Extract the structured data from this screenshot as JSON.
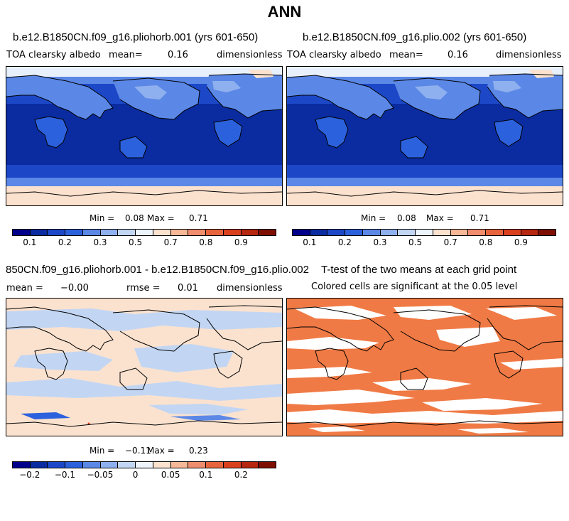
{
  "title": "ANN",
  "panels": {
    "p1": {
      "title": "b.e12.B1850CN.f09_g16.pliohorb.001 (yrs 601-650)",
      "left_label": "TOA clearsky albedo",
      "mean_label": "mean=",
      "mean_value": "0.16",
      "units": "dimensionless",
      "min_label": "Min =",
      "min_value": "0.08",
      "max_label": "Max =",
      "max_value": "0.71"
    },
    "p2": {
      "title": "b.e12.B1850CN.f09_g16.plio.002 (yrs 601-650)",
      "left_label": "TOA clearsky albedo",
      "mean_label": "mean=",
      "mean_value": "0.16",
      "units": "dimensionless",
      "min_label": "Min =",
      "min_value": "0.08",
      "max_label": "Max =",
      "max_value": "0.71"
    },
    "p3": {
      "title": "850CN.f09_g16.pliohorb.001 - b.e12.B1850CN.f09_g16.plio.002",
      "mean_label": "mean =",
      "mean_value": "−0.00",
      "rmse_label": "rmse =",
      "rmse_value": "0.01",
      "units": "dimensionless",
      "min_label": "Min =",
      "min_value": "−0.11",
      "max_label": "Max =",
      "max_value": "0.23"
    },
    "p4": {
      "title": "T-test of the two means at each grid point",
      "subtitle": "Colored cells are significant at the 0.05 level"
    }
  },
  "colorbar_main": {
    "colors": [
      "#00008b",
      "#0a2ca0",
      "#1c48c8",
      "#2c61dd",
      "#5b88e6",
      "#8fb0ee",
      "#c2d6f3",
      "#eef4fb",
      "#fbe2cf",
      "#f7b898",
      "#f08d6e",
      "#e8643c",
      "#d9401e",
      "#b7260f",
      "#7e0f00"
    ],
    "ticks": [
      "0.1",
      "0.2",
      "0.3",
      "0.5",
      "0.7",
      "0.8",
      "0.9"
    ]
  },
  "colorbar_diff": {
    "colors": [
      "#00008b",
      "#0a2ca0",
      "#1c48c8",
      "#2c61dd",
      "#5b88e6",
      "#8fb0ee",
      "#c2d6f3",
      "#eef4fb",
      "#fbe2cf",
      "#f7b898",
      "#f08d6e",
      "#e8643c",
      "#d9401e",
      "#b7260f",
      "#7e0f00"
    ],
    "ticks": [
      "−0.2",
      "−0.1",
      "−0.05",
      "0",
      "0.05",
      "0.1",
      "0.2"
    ]
  }
}
